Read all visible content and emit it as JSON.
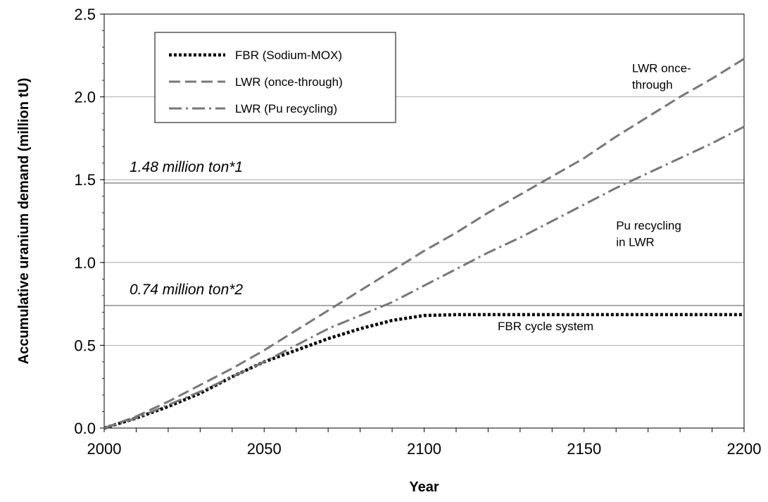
{
  "chart_data": {
    "type": "line",
    "xlabel": "Year",
    "ylabel": "Accumulative uranium demand (million tU)",
    "xlim": [
      2000,
      2200
    ],
    "ylim": [
      0,
      2.5
    ],
    "x_ticks": [
      "2000",
      "2050",
      "2100",
      "2150",
      "2200"
    ],
    "y_ticks": [
      "0.0",
      "0.5",
      "1.0",
      "1.5",
      "2.0",
      "2.5"
    ],
    "grid": "horizontal",
    "legend_position": "top-left",
    "series": [
      {
        "name": "FBR (Sodium-MOX)",
        "style": "dotted",
        "color": "#000000",
        "x": [
          2000,
          2010,
          2020,
          2030,
          2040,
          2050,
          2060,
          2070,
          2080,
          2090,
          2100,
          2110,
          2150,
          2200
        ],
        "y": [
          0.0,
          0.06,
          0.13,
          0.21,
          0.31,
          0.4,
          0.47,
          0.54,
          0.6,
          0.65,
          0.68,
          0.685,
          0.685,
          0.685
        ]
      },
      {
        "name": "LWR (once-through)",
        "style": "dashed",
        "color": "#777777",
        "x": [
          2000,
          2010,
          2020,
          2030,
          2040,
          2050,
          2060,
          2070,
          2080,
          2090,
          2100,
          2110,
          2120,
          2130,
          2140,
          2150,
          2160,
          2170,
          2180,
          2190,
          2200
        ],
        "y": [
          0.0,
          0.07,
          0.16,
          0.26,
          0.36,
          0.47,
          0.59,
          0.71,
          0.83,
          0.95,
          1.07,
          1.18,
          1.3,
          1.41,
          1.52,
          1.63,
          1.76,
          1.88,
          2.0,
          2.11,
          2.23
        ]
      },
      {
        "name": "LWR (Pu recycling)",
        "style": "dash-dot",
        "color": "#777777",
        "x": [
          2000,
          2010,
          2020,
          2030,
          2040,
          2050,
          2060,
          2070,
          2080,
          2090,
          2100,
          2110,
          2120,
          2130,
          2140,
          2150,
          2160,
          2170,
          2180,
          2190,
          2200
        ],
        "y": [
          0.0,
          0.06,
          0.14,
          0.22,
          0.31,
          0.4,
          0.5,
          0.6,
          0.68,
          0.76,
          0.86,
          0.96,
          1.06,
          1.15,
          1.25,
          1.35,
          1.45,
          1.54,
          1.63,
          1.72,
          1.82
        ]
      }
    ],
    "reference_lines": [
      {
        "label": "1.48 million ton*1",
        "y": 1.48
      },
      {
        "label": "0.74 million ton*2",
        "y": 0.74
      }
    ],
    "annotations": [
      {
        "text": "LWR once-",
        "x": 2165,
        "y": 2.15
      },
      {
        "text": "through",
        "x": 2165,
        "y": 2.05
      },
      {
        "text": "Pu recycling",
        "x": 2160,
        "y": 1.2
      },
      {
        "text": "in LWR",
        "x": 2160,
        "y": 1.1
      },
      {
        "text": "FBR cycle system",
        "x": 2123,
        "y": 0.59
      }
    ]
  }
}
